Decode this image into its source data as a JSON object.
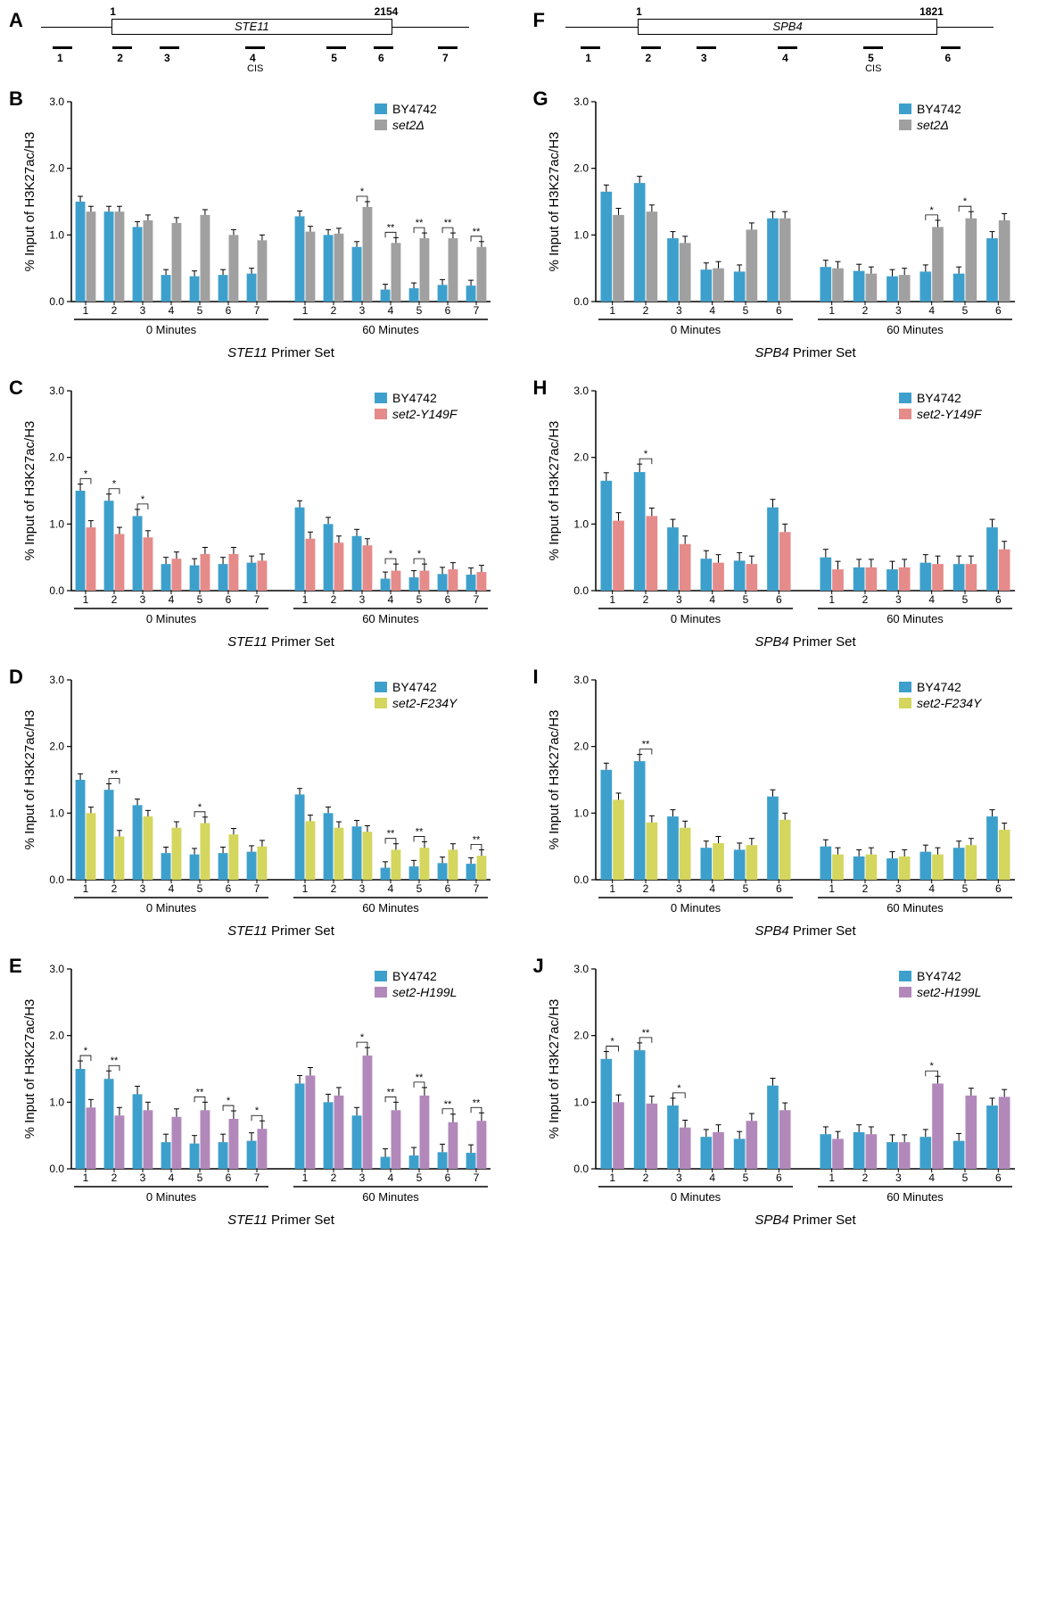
{
  "colors": {
    "BY4742": "#3da0cc",
    "set2del": "#a0a0a0",
    "set2_Y149F": "#e58b8a",
    "set2_F234Y": "#d4d65e",
    "set2_H199L": "#b288bb",
    "axis": "#000000",
    "error": "#000000",
    "bg": "#ffffff"
  },
  "y_axis": {
    "title": "% Input of H3K27ac/H3",
    "min": 0,
    "max": 3.0,
    "ticks": [
      0.0,
      1.0,
      2.0,
      3.0
    ],
    "tick_labels": [
      "0.0",
      "1.0",
      "2.0",
      "3.0"
    ]
  },
  "timepoints": [
    "0 Minutes",
    "60 Minutes"
  ],
  "genes": {
    "STE11": {
      "name": "STE11",
      "length": 2154,
      "primers": [
        1,
        2,
        3,
        4,
        5,
        6,
        7
      ],
      "cis_primer": 4,
      "primer_pos": [
        0.05,
        0.19,
        0.3,
        0.5,
        0.69,
        0.8,
        0.95
      ],
      "box_start": 0.165,
      "box_end": 0.82,
      "x_title": "STE11 Primer Set"
    },
    "SPB4": {
      "name": "SPB4",
      "length": 1821,
      "primers": [
        1,
        2,
        3,
        4,
        5,
        6
      ],
      "cis_primer": 5,
      "primer_pos": [
        0.06,
        0.2,
        0.33,
        0.52,
        0.72,
        0.9
      ],
      "box_start": 0.17,
      "box_end": 0.87,
      "x_title": "SPB4 Primer Set"
    }
  },
  "panels": [
    {
      "id": "A",
      "type": "gene",
      "gene": "STE11"
    },
    {
      "id": "F",
      "type": "gene",
      "gene": "SPB4"
    },
    {
      "id": "B",
      "type": "chart",
      "gene": "STE11",
      "series2": "set2del",
      "series2_label": "set2Δ",
      "italic": true,
      "data0_1": [
        1.5,
        1.35,
        1.12,
        0.4,
        0.38,
        0.4,
        0.42
      ],
      "data0_2": [
        1.35,
        1.35,
        1.22,
        1.18,
        1.3,
        1.0,
        0.92
      ],
      "data60_1": [
        1.28,
        1.0,
        0.82,
        0.18,
        0.2,
        0.25,
        0.24
      ],
      "data60_2": [
        1.05,
        1.02,
        1.42,
        0.88,
        0.95,
        0.95,
        0.82
      ],
      "err": 0.08,
      "sig0": [],
      "sig60": [
        [
          3,
          "*"
        ],
        [
          4,
          "**"
        ],
        [
          5,
          "**"
        ],
        [
          6,
          "**"
        ],
        [
          7,
          "**"
        ]
      ]
    },
    {
      "id": "G",
      "type": "chart",
      "gene": "SPB4",
      "series2": "set2del",
      "series2_label": "set2Δ",
      "italic": true,
      "data0_1": [
        1.65,
        1.78,
        0.95,
        0.48,
        0.45,
        1.25
      ],
      "data0_2": [
        1.3,
        1.35,
        0.88,
        0.5,
        1.08,
        1.25
      ],
      "data60_1": [
        0.52,
        0.46,
        0.38,
        0.45,
        0.42,
        0.95
      ],
      "data60_2": [
        0.5,
        0.42,
        0.4,
        1.12,
        1.25,
        1.22
      ],
      "err": 0.1,
      "sig0": [],
      "sig60": [
        [
          4,
          "*"
        ],
        [
          5,
          "*"
        ]
      ]
    },
    {
      "id": "C",
      "type": "chart",
      "gene": "STE11",
      "series2": "set2_Y149F",
      "series2_label": "set2-Y149F",
      "italic": true,
      "data0_1": [
        1.5,
        1.35,
        1.12,
        0.4,
        0.38,
        0.4,
        0.42
      ],
      "data0_2": [
        0.95,
        0.85,
        0.8,
        0.48,
        0.55,
        0.55,
        0.45
      ],
      "data60_1": [
        1.25,
        1.0,
        0.82,
        0.18,
        0.2,
        0.25,
        0.24
      ],
      "data60_2": [
        0.78,
        0.72,
        0.68,
        0.3,
        0.3,
        0.32,
        0.28
      ],
      "err": 0.1,
      "sig0": [
        [
          1,
          "*"
        ],
        [
          2,
          "*"
        ],
        [
          3,
          "*"
        ]
      ],
      "sig60": [
        [
          4,
          "*"
        ],
        [
          5,
          "*"
        ]
      ]
    },
    {
      "id": "H",
      "type": "chart",
      "gene": "SPB4",
      "series2": "set2_Y149F",
      "series2_label": "set2-Y149F",
      "italic": true,
      "data0_1": [
        1.65,
        1.78,
        0.95,
        0.48,
        0.45,
        1.25
      ],
      "data0_2": [
        1.05,
        1.12,
        0.7,
        0.42,
        0.4,
        0.88
      ],
      "data60_1": [
        0.5,
        0.35,
        0.32,
        0.42,
        0.4,
        0.95
      ],
      "data60_2": [
        0.32,
        0.35,
        0.35,
        0.4,
        0.4,
        0.62
      ],
      "err": 0.12,
      "sig0": [
        [
          2,
          "*"
        ]
      ],
      "sig60": []
    },
    {
      "id": "D",
      "type": "chart",
      "gene": "STE11",
      "series2": "set2_F234Y",
      "series2_label": "set2-F234Y",
      "italic": true,
      "data0_1": [
        1.5,
        1.35,
        1.12,
        0.4,
        0.38,
        0.4,
        0.42
      ],
      "data0_2": [
        1.0,
        0.65,
        0.95,
        0.78,
        0.85,
        0.68,
        0.5
      ],
      "data60_1": [
        1.28,
        1.0,
        0.8,
        0.18,
        0.2,
        0.25,
        0.24
      ],
      "data60_2": [
        0.88,
        0.78,
        0.72,
        0.45,
        0.48,
        0.45,
        0.36
      ],
      "err": 0.09,
      "sig0": [
        [
          2,
          "**"
        ],
        [
          5,
          "*"
        ]
      ],
      "sig60": [
        [
          4,
          "**"
        ],
        [
          5,
          "**"
        ],
        [
          7,
          "**"
        ]
      ]
    },
    {
      "id": "I",
      "type": "chart",
      "gene": "SPB4",
      "series2": "set2_F234Y",
      "series2_label": "set2-F234Y",
      "italic": true,
      "data0_1": [
        1.65,
        1.78,
        0.95,
        0.48,
        0.45,
        1.25
      ],
      "data0_2": [
        1.2,
        0.86,
        0.78,
        0.55,
        0.52,
        0.9
      ],
      "data60_1": [
        0.5,
        0.35,
        0.32,
        0.42,
        0.48,
        0.95
      ],
      "data60_2": [
        0.38,
        0.38,
        0.35,
        0.38,
        0.52,
        0.75
      ],
      "err": 0.1,
      "sig0": [
        [
          2,
          "**"
        ]
      ],
      "sig60": []
    },
    {
      "id": "E",
      "type": "chart",
      "gene": "STE11",
      "series2": "set2_H199L",
      "series2_label": "set2-H199L",
      "italic": true,
      "data0_1": [
        1.5,
        1.35,
        1.12,
        0.4,
        0.38,
        0.4,
        0.42
      ],
      "data0_2": [
        0.92,
        0.8,
        0.88,
        0.78,
        0.88,
        0.75,
        0.6
      ],
      "data60_1": [
        1.28,
        1.0,
        0.8,
        0.18,
        0.2,
        0.25,
        0.24
      ],
      "data60_2": [
        1.4,
        1.1,
        1.7,
        0.88,
        1.1,
        0.7,
        0.72
      ],
      "err": 0.12,
      "sig0": [
        [
          1,
          "*"
        ],
        [
          2,
          "**"
        ],
        [
          5,
          "**"
        ],
        [
          6,
          "*"
        ],
        [
          7,
          "*"
        ]
      ],
      "sig60": [
        [
          3,
          "*"
        ],
        [
          4,
          "**"
        ],
        [
          5,
          "**"
        ],
        [
          6,
          "**"
        ],
        [
          7,
          "**"
        ]
      ]
    },
    {
      "id": "J",
      "type": "chart",
      "gene": "SPB4",
      "series2": "set2_H199L",
      "series2_label": "set2-H199L",
      "italic": true,
      "data0_1": [
        1.65,
        1.78,
        0.95,
        0.48,
        0.45,
        1.25
      ],
      "data0_2": [
        1.0,
        0.98,
        0.62,
        0.55,
        0.72,
        0.88
      ],
      "data60_1": [
        0.52,
        0.55,
        0.4,
        0.48,
        0.42,
        0.95
      ],
      "data60_2": [
        0.45,
        0.52,
        0.4,
        1.28,
        1.1,
        1.08
      ],
      "err": 0.11,
      "sig0": [
        [
          1,
          "*"
        ],
        [
          2,
          "**"
        ],
        [
          3,
          "*"
        ]
      ],
      "sig60": [
        [
          4,
          "*"
        ]
      ]
    }
  ]
}
